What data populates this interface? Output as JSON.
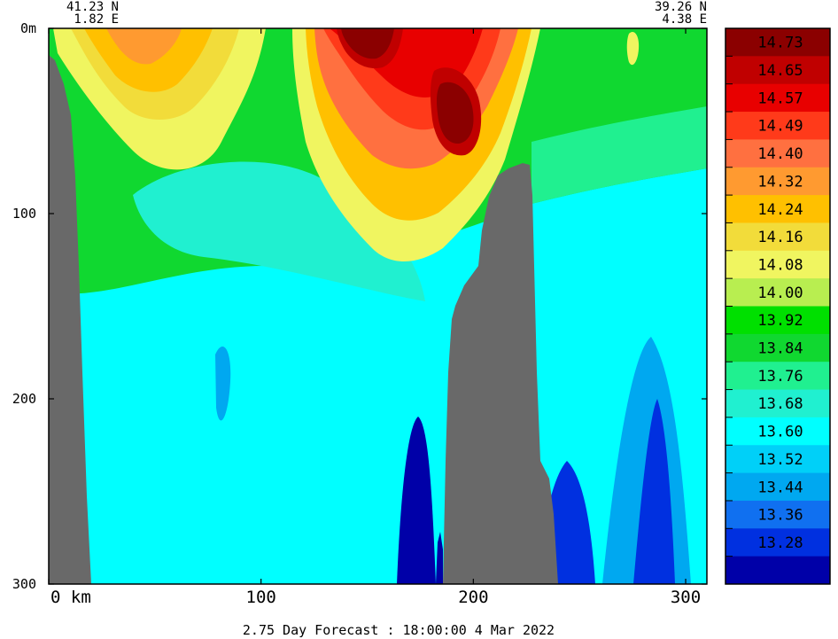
{
  "chart_data": {
    "type": "heatmap",
    "title": "",
    "start_point": {
      "lat": "41.23 N",
      "lon": "1.82 E"
    },
    "end_point": {
      "lat": "39.26 N",
      "lon": "4.38 E"
    },
    "x_axis": {
      "unit_label": "km",
      "range": [
        0,
        310
      ],
      "ticks": [
        0,
        100,
        200,
        300
      ],
      "tick_labels": [
        "0",
        "100",
        "200",
        "300"
      ]
    },
    "y_axis": {
      "unit_label": "m",
      "range": [
        0,
        300
      ],
      "inverted": true,
      "ticks": [
        0,
        100,
        200,
        300
      ],
      "tick_labels": [
        "0",
        "100",
        "200",
        "300"
      ]
    },
    "colorbar": {
      "labels": [
        "14.73",
        "14.65",
        "14.57",
        "14.49",
        "14.40",
        "14.32",
        "14.24",
        "14.16",
        "14.08",
        "14.00",
        "13.92",
        "13.84",
        "13.76",
        "13.68",
        "13.60",
        "13.52",
        "13.44",
        "13.36",
        "13.28"
      ],
      "colors": [
        "#8b0000",
        "#c00000",
        "#e80000",
        "#ff3a1a",
        "#ff7040",
        "#ff9a30",
        "#ffc000",
        "#f2dc3a",
        "#f0f560",
        "#b8ee50",
        "#00e000",
        "#10d830",
        "#20f090",
        "#20f0d0",
        "#00ffff",
        "#00d0f8",
        "#00a8f0",
        "#1070f0",
        "#0030e0",
        "#0000a8"
      ],
      "colors_note": "top to bottom"
    },
    "bathymetry_color": "#696969",
    "footer": "2.75 Day Forecast : 18:00:00   4 Mar 2022"
  }
}
